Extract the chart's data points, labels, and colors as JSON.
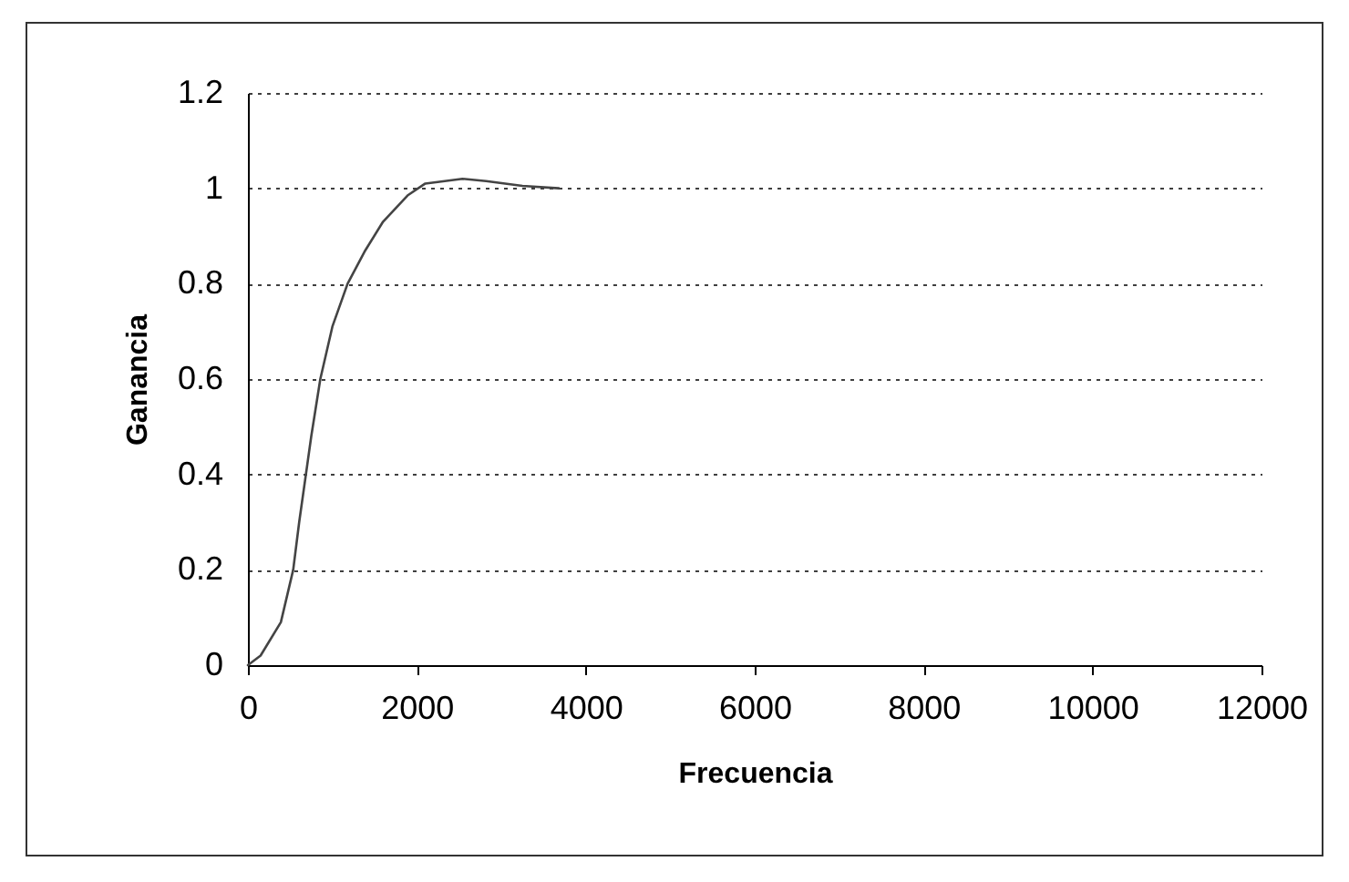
{
  "chart_data": {
    "type": "line",
    "xlabel": "Frecuencia",
    "ylabel": "Ganancia",
    "x": [
      0,
      150,
      390,
      536,
      607,
      750,
      857,
      1000,
      1180,
      1390,
      1600,
      1890,
      2100,
      2540,
      2820,
      3250,
      3680
    ],
    "series": [
      {
        "color": "#444444",
        "values": [
          0,
          0.02,
          0.09,
          0.2,
          0.3,
          0.48,
          0.6,
          0.71,
          0.8,
          0.87,
          0.93,
          0.985,
          1.01,
          1.02,
          1.015,
          1.005,
          1.0
        ]
      }
    ],
    "xlim": [
      0,
      12000
    ],
    "xticks": [
      0,
      2000,
      4000,
      6000,
      8000,
      10000,
      12000
    ],
    "ylim": [
      0,
      1.2
    ],
    "yticks": [
      0,
      0.2,
      0.4,
      0.6,
      0.8,
      1,
      1.2
    ],
    "grid": "y",
    "line_style": "solid",
    "marker": "none",
    "legend": false
  }
}
